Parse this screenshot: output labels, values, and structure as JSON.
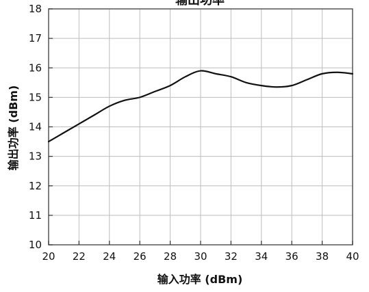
{
  "chart_data": {
    "type": "line",
    "title": "",
    "title_partial_visible": "输出功率",
    "xlabel": "输入功率 (dBm)",
    "ylabel": "输出功率 (dBm)",
    "xlim": [
      20,
      40
    ],
    "ylim": [
      10,
      18
    ],
    "xticks": [
      20,
      22,
      24,
      26,
      28,
      30,
      32,
      34,
      36,
      38,
      40
    ],
    "yticks": [
      10,
      11,
      12,
      13,
      14,
      15,
      16,
      17,
      18
    ],
    "grid": true,
    "legend": "none",
    "line_color": "#111111",
    "grid_color": "#bdbdbd",
    "series": [
      {
        "x": [
          20,
          21,
          22,
          23,
          24,
          25,
          26,
          27,
          28,
          29,
          30,
          31,
          32,
          33,
          34,
          35,
          36,
          37,
          38,
          39,
          40
        ],
        "y": [
          13.5,
          13.8,
          14.1,
          14.4,
          14.7,
          14.9,
          15.0,
          15.2,
          15.4,
          15.7,
          15.9,
          15.8,
          15.7,
          15.5,
          15.4,
          15.35,
          15.4,
          15.6,
          15.8,
          15.85,
          15.8
        ]
      }
    ]
  }
}
